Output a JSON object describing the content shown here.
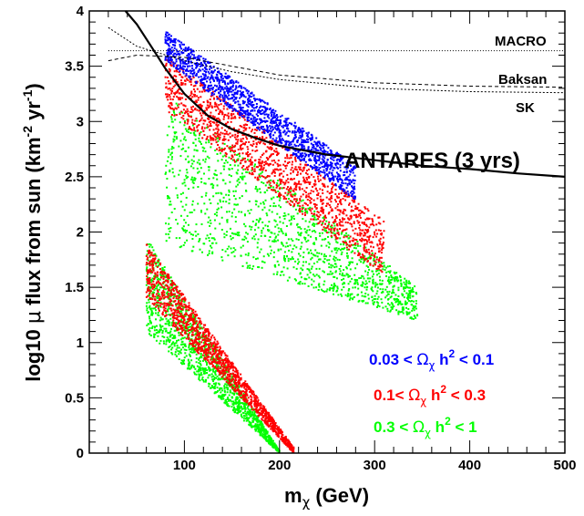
{
  "chart_data": {
    "type": "scatter",
    "xlabel_main": "m",
    "xlabel_sub": "χ",
    "xlabel_unit": " (GeV)",
    "ylabel_prefix": "log10 ",
    "ylabel_mu": "μ",
    "ylabel_rest": " flux from sun (km",
    "ylabel_exp1": "-2",
    "ylabel_mid": " yr",
    "ylabel_exp2": "-1",
    "ylabel_end": ")",
    "xlim": [
      0,
      500
    ],
    "ylim": [
      0,
      4
    ],
    "xticks": [
      "100",
      "200",
      "300",
      "400",
      "500"
    ],
    "yticks": [
      "0",
      "0.5",
      "1",
      "1.5",
      "2",
      "2.5",
      "3",
      "3.5",
      "4"
    ],
    "curves": [
      {
        "name": "MACRO",
        "style": "dotted",
        "x": [
          20,
          500
        ],
        "y": [
          3.64,
          3.64
        ]
      },
      {
        "name": "Baksan",
        "style": "dashed",
        "x": [
          20,
          50,
          100,
          150,
          200,
          300,
          400,
          500
        ],
        "y": [
          3.55,
          3.6,
          3.58,
          3.5,
          3.42,
          3.35,
          3.32,
          3.31
        ]
      },
      {
        "name": "SK",
        "style": "dashed-fine",
        "x": [
          20,
          50,
          100,
          150,
          200,
          300,
          400,
          500
        ],
        "y": [
          3.85,
          3.68,
          3.55,
          3.45,
          3.38,
          3.3,
          3.27,
          3.26
        ]
      },
      {
        "name": "ANTARES (3 yrs)",
        "style": "solid",
        "x": [
          38,
          50,
          65,
          80,
          100,
          125,
          150,
          175,
          200,
          250,
          300,
          350,
          400,
          450,
          500
        ],
        "y": [
          4.0,
          3.88,
          3.68,
          3.48,
          3.25,
          3.05,
          2.93,
          2.85,
          2.78,
          2.7,
          2.65,
          2.6,
          2.57,
          2.53,
          2.5
        ]
      }
    ],
    "series": [
      {
        "name_lo": "0.03 < ",
        "name_hi": " < 0.1",
        "color": "#0000ff",
        "bands": [
          {
            "x": [
              80,
              280
            ],
            "ytop": [
              3.82,
              2.6
            ],
            "ybot": [
              3.55,
              2.28
            ]
          }
        ]
      },
      {
        "name_lo": "0.1< ",
        "name_hi": " < 0.3",
        "color": "#ff0000",
        "bands": [
          {
            "x": [
              80,
              310
            ],
            "ytop": [
              3.6,
              2.1
            ],
            "ybot": [
              3.1,
              1.6
            ]
          },
          {
            "x": [
              60,
              215
            ],
            "ytop": [
              1.9,
              0.05
            ],
            "ybot": [
              1.4,
              0.0
            ]
          }
        ]
      },
      {
        "name_lo": "0.3 < ",
        "name_hi": " < 1",
        "color": "#00ff00",
        "bands": [
          {
            "x": [
              80,
              345
            ],
            "ytop": [
              3.25,
              1.5
            ],
            "ybot": [
              1.9,
              1.2
            ]
          },
          {
            "x": [
              60,
              200
            ],
            "ytop": [
              1.95,
              0.02
            ],
            "ybot": [
              1.1,
              0.0
            ]
          }
        ]
      }
    ],
    "legend_symbol": "Ω",
    "legend_sub": "χ",
    "legend_h": " h",
    "legend_exp": "2"
  }
}
